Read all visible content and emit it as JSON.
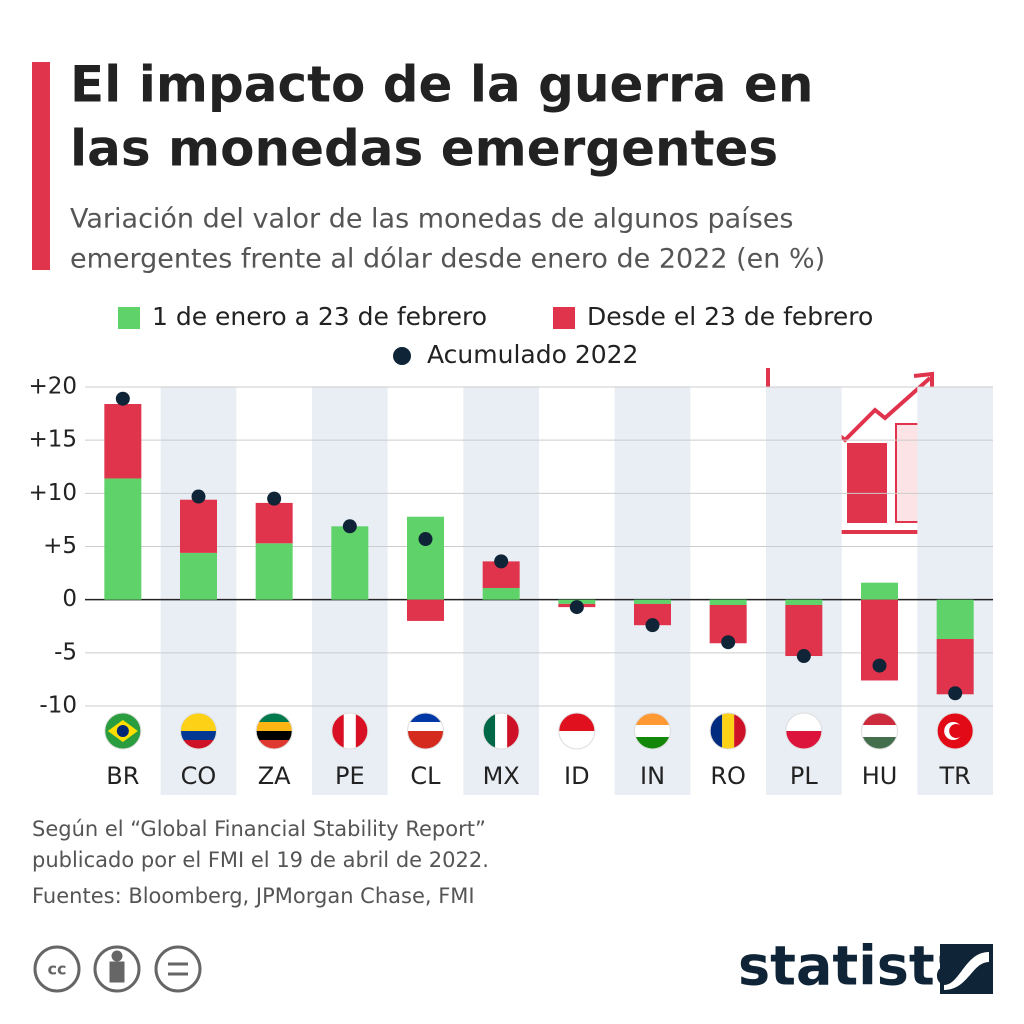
{
  "chart_data": {
    "type": "bar",
    "title": [
      "El impacto de la guerra en",
      "las monedas emergentes"
    ],
    "subtitle": [
      "Variación del valor de las monedas de algunos países",
      "emergentes frente al dólar desde enero de 2022 (en %)"
    ],
    "categories": [
      "BR",
      "CO",
      "ZA",
      "PE",
      "CL",
      "MX",
      "ID",
      "IN",
      "RO",
      "PL",
      "HU",
      "TR"
    ],
    "series": [
      {
        "name": "1 de enero a 23 de febrero",
        "color": "#5fd36a",
        "style": "bar",
        "values": [
          11.4,
          4.4,
          5.3,
          6.9,
          7.8,
          1.1,
          -0.4,
          -0.4,
          -0.5,
          -0.5,
          1.6,
          -3.7
        ]
      },
      {
        "name": "Desde el 23 de febrero",
        "color": "#e0334c",
        "style": "bar",
        "values": [
          7.0,
          5.0,
          3.8,
          0,
          -2.0,
          2.5,
          -0.3,
          -2.0,
          -3.6,
          -4.8,
          -7.6,
          -5.2
        ]
      },
      {
        "name": "Acumulado 2022",
        "color": "#0f2537",
        "style": "dot",
        "values": [
          18.9,
          9.7,
          9.5,
          6.9,
          5.7,
          3.6,
          -0.7,
          -2.4,
          -4.0,
          -5.3,
          -6.2,
          -8.8
        ]
      }
    ],
    "ylim": [
      -10,
      20
    ],
    "yticks": [
      {
        "value": 20,
        "label": "+20"
      },
      {
        "value": 15,
        "label": "+15"
      },
      {
        "value": 10,
        "label": "+10"
      },
      {
        "value": 5,
        "label": "+5"
      },
      0,
      -5,
      -10
    ],
    "grid": true,
    "notes": [
      "Según el “Global Financial Stability Report”",
      "publicado por el FMI el 19 de abril de 2022.",
      "Fuentes: Bloomberg, JPMorgan Chase, FMI"
    ],
    "brand": "statista"
  }
}
